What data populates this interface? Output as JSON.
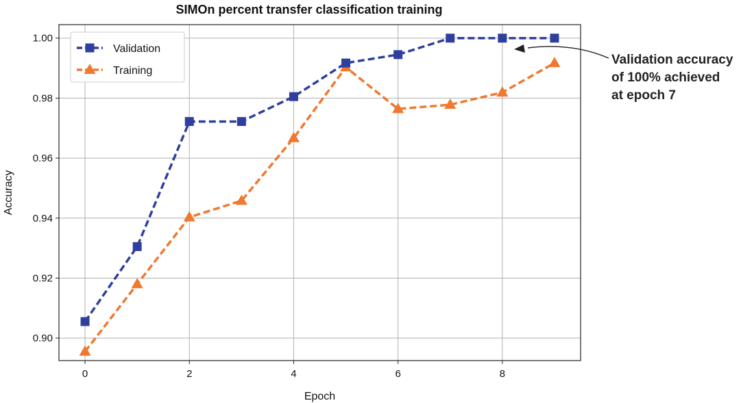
{
  "chart_data": {
    "type": "line",
    "title": "SIMOn percent transfer classification training",
    "xlabel": "Epoch",
    "ylabel": "Accuracy",
    "xlim": [
      -0.5,
      9.5
    ],
    "ylim": [
      0.8925,
      1.0045
    ],
    "grid": true,
    "legend_position": "top-left",
    "xticks": [
      0,
      2,
      4,
      6,
      8
    ],
    "xtick_labels": [
      "0",
      "2",
      "4",
      "6",
      "8"
    ],
    "yticks": [
      0.9,
      0.92,
      0.94,
      0.96,
      0.98,
      1.0
    ],
    "ytick_labels": [
      "0.90",
      "0.92",
      "0.94",
      "0.96",
      "0.98",
      "1.00"
    ],
    "x": [
      0,
      1,
      2,
      3,
      4,
      5,
      6,
      7,
      8,
      9
    ],
    "series": [
      {
        "name": "Validation",
        "color": "#2f3f9e",
        "marker": "square",
        "values": [
          0.9055,
          0.9305,
          0.9722,
          0.9722,
          0.9805,
          0.9917,
          0.9945,
          1.0,
          1.0,
          1.0
        ]
      },
      {
        "name": "Training",
        "color": "#f07830",
        "marker": "triangle",
        "values": [
          0.8955,
          0.918,
          0.9403,
          0.9458,
          0.9667,
          0.9903,
          0.9764,
          0.9778,
          0.9819,
          0.9917
        ]
      }
    ],
    "annotation": {
      "lines": [
        "Validation accuracy",
        "of 100% achieved",
        "at epoch 7"
      ],
      "points_to": {
        "x": 8,
        "y": 1.0
      }
    }
  }
}
